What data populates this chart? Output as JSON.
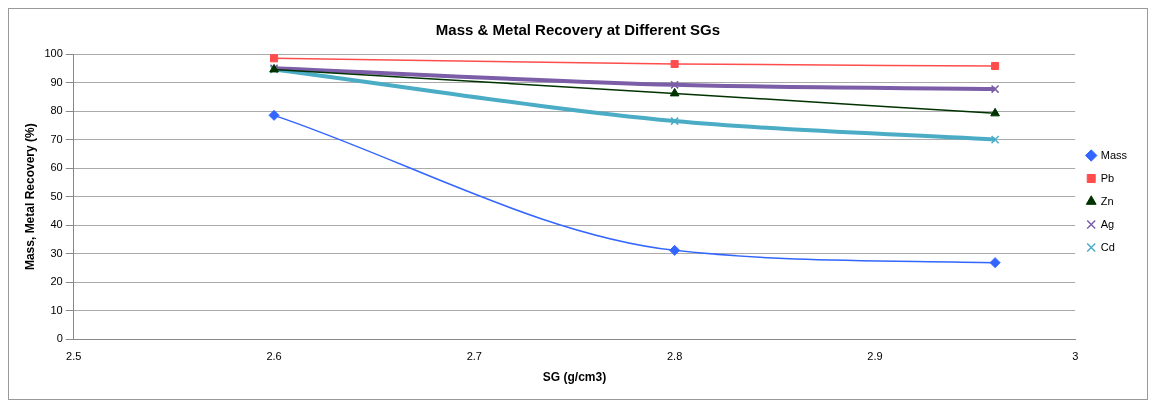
{
  "chart_data": {
    "type": "line",
    "title": "Mass & Metal Recovery at Different SGs",
    "xlabel": "SG (g/cm3)",
    "ylabel": "Mass, Metal Recovery (%)",
    "x": [
      2.6,
      2.8,
      2.96
    ],
    "series": [
      {
        "name": "Mass",
        "color": "#3366ff",
        "marker": "diamond",
        "values": [
          78.5,
          31.2,
          26.9
        ]
      },
      {
        "name": "Pb",
        "color": "#ff4d4d",
        "marker": "square",
        "values": [
          98.5,
          96.5,
          95.8
        ]
      },
      {
        "name": "Zn",
        "color": "#003300",
        "marker": "triangle",
        "values": [
          94.6,
          86.2,
          79.2
        ]
      },
      {
        "name": "Ag",
        "color": "#7b5ea7",
        "marker": "cross",
        "values": [
          95,
          89.2,
          87.7
        ]
      },
      {
        "name": "Cd",
        "color": "#4bacc6",
        "marker": "cross",
        "values": [
          94.6,
          76.5,
          70
        ]
      }
    ],
    "xlim": [
      2.5,
      3
    ],
    "xticks": [
      2.5,
      2.6,
      2.7,
      2.8,
      2.9,
      3
    ],
    "ylim": [
      0,
      100
    ],
    "yticks": [
      0,
      10,
      20,
      30,
      40,
      50,
      60,
      70,
      80,
      90,
      100
    ],
    "grid": "y",
    "legend": "right",
    "line_style": "solid"
  }
}
